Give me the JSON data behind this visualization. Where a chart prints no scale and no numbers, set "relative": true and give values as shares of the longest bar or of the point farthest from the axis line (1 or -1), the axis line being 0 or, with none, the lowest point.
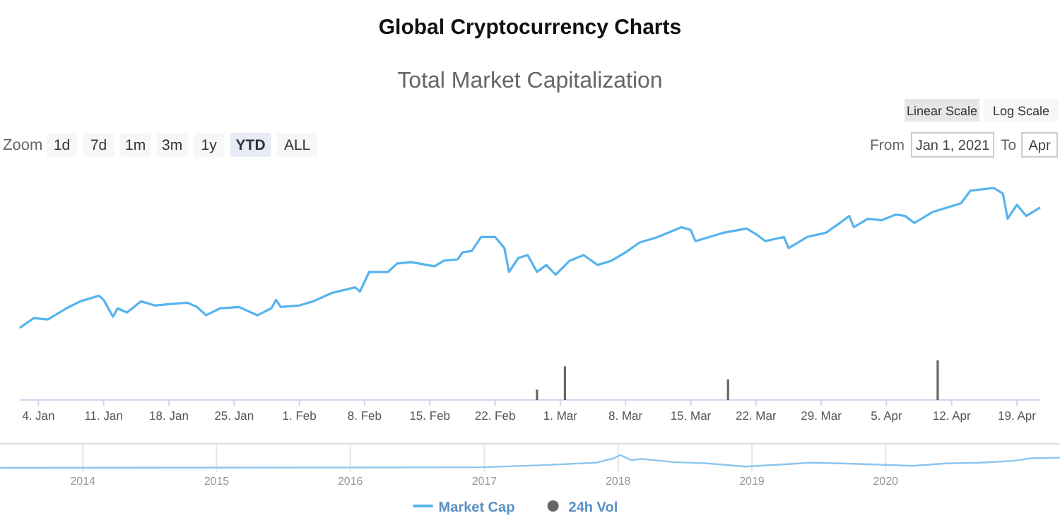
{
  "chart_data": [
    {
      "type": "line",
      "title": "Global Cryptocurrency Charts",
      "subtitle": "Total Market Capitalization",
      "relative": true,
      "legend": "bottom",
      "xlim": [
        "2021-01-02",
        "2021-04-21T12:00"
      ],
      "xticks": [
        {
          "value": "2021-01-04",
          "label": "4. Jan"
        },
        {
          "value": "2021-01-11",
          "label": "11. Jan"
        },
        {
          "value": "2021-01-18",
          "label": "18. Jan"
        },
        {
          "value": "2021-01-25",
          "label": "25. Jan"
        },
        {
          "value": "2021-02-01",
          "label": "1. Feb"
        },
        {
          "value": "2021-02-08",
          "label": "8. Feb"
        },
        {
          "value": "2021-02-15",
          "label": "15. Feb"
        },
        {
          "value": "2021-02-22",
          "label": "22. Feb"
        },
        {
          "value": "2021-03-01",
          "label": "1. Mar"
        },
        {
          "value": "2021-03-08",
          "label": "8. Mar"
        },
        {
          "value": "2021-03-15",
          "label": "15. Mar"
        },
        {
          "value": "2021-03-22",
          "label": "22. Mar"
        },
        {
          "value": "2021-03-29",
          "label": "29. Mar"
        },
        {
          "value": "2021-04-05",
          "label": "5. Apr"
        },
        {
          "value": "2021-04-12",
          "label": "12. Apr"
        },
        {
          "value": "2021-04-19",
          "label": "19. Apr"
        }
      ],
      "annotations": [
        "Zoom",
        "1d",
        "7d",
        "1m",
        "3m",
        "1y",
        "YTD",
        "ALL",
        "From",
        "Jan 1, 2021",
        "To",
        "Apr",
        "Linear Scale",
        "Log Scale"
      ],
      "series": [
        {
          "name": "Market Cap",
          "color": "#56b4ed",
          "x": [
            "2021-01-02",
            "2021-01-03T12:00",
            "2021-01-05",
            "2021-01-07",
            "2021-01-08T12:00",
            "2021-01-10T12:00",
            "2021-01-11",
            "2021-01-12",
            "2021-01-12T12:00",
            "2021-01-13T12:00",
            "2021-01-15",
            "2021-01-16T12:00",
            "2021-01-18",
            "2021-01-20",
            "2021-01-21",
            "2021-01-22",
            "2021-01-23T12:00",
            "2021-01-25T12:00",
            "2021-01-27T12:00",
            "2021-01-29",
            "2021-01-29T12:00",
            "2021-01-30",
            "2021-02-01",
            "2021-02-02T12:00",
            "2021-02-04T12:00",
            "2021-02-07",
            "2021-02-07T12:00",
            "2021-02-08T12:00",
            "2021-02-10T12:00",
            "2021-02-11T12:00",
            "2021-02-13",
            "2021-02-15T12:00",
            "2021-02-16T12:00",
            "2021-02-18",
            "2021-02-18T12:00",
            "2021-02-19T12:00",
            "2021-02-20T12:00",
            "2021-02-22",
            "2021-02-23",
            "2021-02-23T12:00",
            "2021-02-24T12:00",
            "2021-02-25T12:00",
            "2021-02-26T12:00",
            "2021-02-27T12:00",
            "2021-02-28T12:00",
            "2021-03-02",
            "2021-03-03T12:00",
            "2021-03-05",
            "2021-03-06T12:00",
            "2021-03-08",
            "2021-03-09T12:00",
            "2021-03-11T12:00",
            "2021-03-14",
            "2021-03-15",
            "2021-03-15T12:00",
            "2021-03-18T12:00",
            "2021-03-21",
            "2021-03-22",
            "2021-03-23",
            "2021-03-25",
            "2021-03-25T12:00",
            "2021-03-27T12:00",
            "2021-03-29T12:00",
            "2021-03-31",
            "2021-04-01",
            "2021-04-01T12:00",
            "2021-04-03",
            "2021-04-04T12:00",
            "2021-04-06",
            "2021-04-07",
            "2021-04-08",
            "2021-04-10",
            "2021-04-13",
            "2021-04-14",
            "2021-04-16T12:00",
            "2021-04-17T12:00",
            "2021-04-18",
            "2021-04-19",
            "2021-04-20",
            "2021-04-21T12:00"
          ],
          "values": [
            0,
            0.07,
            0.06,
            0.14,
            0.19,
            0.23,
            0.2,
            0.08,
            0.14,
            0.11,
            0.19,
            0.16,
            0.17,
            0.18,
            0.15,
            0.09,
            0.14,
            0.15,
            0.09,
            0.14,
            0.2,
            0.15,
            0.16,
            0.19,
            0.25,
            0.29,
            0.26,
            0.4,
            0.4,
            0.46,
            0.47,
            0.44,
            0.48,
            0.49,
            0.54,
            0.55,
            0.65,
            0.65,
            0.57,
            0.4,
            0.5,
            0.52,
            0.4,
            0.45,
            0.38,
            0.48,
            0.52,
            0.45,
            0.48,
            0.54,
            0.61,
            0.65,
            0.72,
            0.7,
            0.62,
            0.68,
            0.71,
            0.67,
            0.62,
            0.65,
            0.57,
            0.65,
            0.68,
            0.75,
            0.8,
            0.72,
            0.78,
            0.77,
            0.81,
            0.8,
            0.75,
            0.83,
            0.89,
            0.98,
            1,
            0.96,
            0.78,
            0.88,
            0.8,
            0.86
          ]
        }
      ]
    },
    {
      "type": "bar",
      "relative": true,
      "legend": "bottom",
      "xlim": [
        "2021-01-02",
        "2021-04-21T12:00"
      ],
      "series": [
        {
          "name": "24h Vol",
          "color": "#666666",
          "x": [
            "2021-02-26T12:00",
            "2021-03-01T12:00",
            "2021-03-19",
            "2021-04-10T12:00"
          ],
          "values": [
            0.26,
            0.85,
            0.52,
            1
          ]
        }
      ]
    },
    {
      "type": "line",
      "relative": true,
      "grid": "x",
      "xlim": [
        "2013-05-20",
        "2021-04-21"
      ],
      "xticks": [
        "2014",
        "2015",
        "2016",
        "2017",
        "2018",
        "2019",
        "2020"
      ],
      "series": [
        {
          "color": "#8dc5ee",
          "x": [
            "2013-05-20",
            "2016-01-01",
            "2017-01-01",
            "2017-06-01",
            "2017-11-01",
            "2017-12-20",
            "2018-01-07",
            "2018-02-06",
            "2018-03-05",
            "2018-06-01",
            "2018-09-01",
            "2018-12-15",
            "2019-06-15",
            "2019-09-01",
            "2019-12-15",
            "2020-03-15",
            "2020-06-15",
            "2020-09-15",
            "2020-12-15",
            "2021-02-01",
            "2021-04-21"
          ],
          "values": [
            0,
            0.02,
            0.05,
            0.2,
            0.4,
            0.75,
            1,
            0.6,
            0.7,
            0.45,
            0.35,
            0.1,
            0.4,
            0.35,
            0.25,
            0.15,
            0.35,
            0.4,
            0.55,
            0.75,
            0.8
          ]
        }
      ]
    }
  ]
}
